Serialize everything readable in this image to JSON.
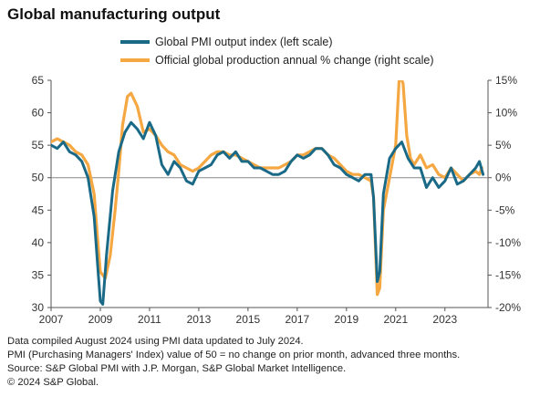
{
  "title": "Global manufacturing output",
  "notes": [
    "Data compiled August 2024 using PMI data updated to July 2024.",
    "PMI (Purchasing Managers' Index) value of 50 = no change on prior month, advanced three months.",
    "Source: S&P Global PMI with J.P. Morgan, S&P Global Market Intelligence.",
    "© 2024 S&P Global."
  ],
  "colors": {
    "pmi": "#1a6a87",
    "official": "#f5a742",
    "axis": "#555555",
    "zero_line": "#888888"
  },
  "chart_data": {
    "type": "line",
    "title": "Global manufacturing output",
    "x_ticks": [
      "2007",
      "2009",
      "2011",
      "2013",
      "2015",
      "2017",
      "2019",
      "2021",
      "2023"
    ],
    "left_axis": {
      "ylim": [
        30,
        65
      ],
      "ticks": [
        "30",
        "35",
        "40",
        "45",
        "50",
        "55",
        "60",
        "65"
      ]
    },
    "right_axis": {
      "ylim": [
        -20,
        15
      ],
      "ticks": [
        "-20%",
        "-15%",
        "-10%",
        "-5%",
        "0%",
        "5%",
        "10%",
        "15%"
      ]
    },
    "grid": false,
    "legend_position": "top",
    "series": [
      {
        "name": "Global PMI output index (left scale)",
        "axis": "left",
        "color": "#1a6a87",
        "points": [
          [
            2007.0,
            55.0
          ],
          [
            2007.25,
            54.5
          ],
          [
            2007.5,
            55.5
          ],
          [
            2007.75,
            54.0
          ],
          [
            2008.0,
            53.5
          ],
          [
            2008.25,
            52.5
          ],
          [
            2008.5,
            50.0
          ],
          [
            2008.75,
            44.0
          ],
          [
            2008.9,
            36.0
          ],
          [
            2009.0,
            31.0
          ],
          [
            2009.1,
            30.5
          ],
          [
            2009.25,
            38.0
          ],
          [
            2009.5,
            48.0
          ],
          [
            2009.75,
            54.0
          ],
          [
            2010.0,
            57.0
          ],
          [
            2010.25,
            58.5
          ],
          [
            2010.5,
            57.5
          ],
          [
            2010.75,
            56.0
          ],
          [
            2011.0,
            58.5
          ],
          [
            2011.25,
            56.5
          ],
          [
            2011.5,
            52.0
          ],
          [
            2011.75,
            50.5
          ],
          [
            2012.0,
            52.5
          ],
          [
            2012.25,
            51.5
          ],
          [
            2012.5,
            49.5
          ],
          [
            2012.75,
            49.0
          ],
          [
            2013.0,
            51.0
          ],
          [
            2013.25,
            51.5
          ],
          [
            2013.5,
            52.0
          ],
          [
            2013.75,
            53.5
          ],
          [
            2014.0,
            54.0
          ],
          [
            2014.25,
            53.0
          ],
          [
            2014.5,
            54.0
          ],
          [
            2014.75,
            52.5
          ],
          [
            2015.0,
            52.5
          ],
          [
            2015.25,
            51.5
          ],
          [
            2015.5,
            51.5
          ],
          [
            2015.75,
            51.0
          ],
          [
            2016.0,
            50.5
          ],
          [
            2016.25,
            50.5
          ],
          [
            2016.5,
            51.0
          ],
          [
            2016.75,
            52.5
          ],
          [
            2017.0,
            53.5
          ],
          [
            2017.25,
            53.0
          ],
          [
            2017.5,
            53.5
          ],
          [
            2017.75,
            54.5
          ],
          [
            2018.0,
            54.5
          ],
          [
            2018.25,
            53.5
          ],
          [
            2018.5,
            52.0
          ],
          [
            2018.75,
            51.5
          ],
          [
            2019.0,
            50.5
          ],
          [
            2019.25,
            50.0
          ],
          [
            2019.5,
            49.5
          ],
          [
            2019.75,
            50.5
          ],
          [
            2020.0,
            50.5
          ],
          [
            2020.1,
            47.0
          ],
          [
            2020.25,
            34.0
          ],
          [
            2020.35,
            35.5
          ],
          [
            2020.5,
            47.5
          ],
          [
            2020.75,
            53.0
          ],
          [
            2021.0,
            54.5
          ],
          [
            2021.25,
            55.5
          ],
          [
            2021.5,
            53.0
          ],
          [
            2021.75,
            51.5
          ],
          [
            2022.0,
            51.5
          ],
          [
            2022.25,
            48.5
          ],
          [
            2022.5,
            50.0
          ],
          [
            2022.75,
            48.5
          ],
          [
            2023.0,
            49.5
          ],
          [
            2023.25,
            51.5
          ],
          [
            2023.5,
            49.0
          ],
          [
            2023.75,
            49.5
          ],
          [
            2024.0,
            50.5
          ],
          [
            2024.25,
            51.5
          ],
          [
            2024.4,
            52.5
          ],
          [
            2024.55,
            50.5
          ]
        ]
      },
      {
        "name": "Official global production annual % change (right scale)",
        "axis": "right",
        "color": "#f5a742",
        "points": [
          [
            2007.0,
            5.5
          ],
          [
            2007.25,
            6.0
          ],
          [
            2007.5,
            5.5
          ],
          [
            2007.75,
            5.0
          ],
          [
            2008.0,
            4.0
          ],
          [
            2008.25,
            3.5
          ],
          [
            2008.5,
            2.0
          ],
          [
            2008.75,
            -2.5
          ],
          [
            2008.9,
            -10.0
          ],
          [
            2009.0,
            -14.5
          ],
          [
            2009.2,
            -15.5
          ],
          [
            2009.4,
            -12.0
          ],
          [
            2009.6,
            -5.0
          ],
          [
            2009.75,
            1.0
          ],
          [
            2009.9,
            8.0
          ],
          [
            2010.1,
            12.5
          ],
          [
            2010.25,
            13.0
          ],
          [
            2010.5,
            11.0
          ],
          [
            2010.75,
            7.0
          ],
          [
            2011.0,
            7.5
          ],
          [
            2011.25,
            6.5
          ],
          [
            2011.5,
            5.0
          ],
          [
            2011.75,
            4.0
          ],
          [
            2012.0,
            3.5
          ],
          [
            2012.25,
            2.0
          ],
          [
            2012.5,
            1.5
          ],
          [
            2012.75,
            1.0
          ],
          [
            2013.0,
            1.5
          ],
          [
            2013.25,
            2.5
          ],
          [
            2013.5,
            3.5
          ],
          [
            2013.75,
            4.0
          ],
          [
            2014.0,
            4.0
          ],
          [
            2014.25,
            3.5
          ],
          [
            2014.5,
            3.5
          ],
          [
            2014.75,
            3.0
          ],
          [
            2015.0,
            2.5
          ],
          [
            2015.25,
            2.0
          ],
          [
            2015.5,
            1.5
          ],
          [
            2015.75,
            1.5
          ],
          [
            2016.0,
            1.5
          ],
          [
            2016.25,
            1.5
          ],
          [
            2016.5,
            2.0
          ],
          [
            2016.75,
            2.5
          ],
          [
            2017.0,
            3.5
          ],
          [
            2017.25,
            3.5
          ],
          [
            2017.5,
            4.0
          ],
          [
            2017.75,
            4.5
          ],
          [
            2018.0,
            4.5
          ],
          [
            2018.25,
            3.5
          ],
          [
            2018.5,
            3.0
          ],
          [
            2018.75,
            2.0
          ],
          [
            2019.0,
            1.0
          ],
          [
            2019.25,
            0.5
          ],
          [
            2019.5,
            0.5
          ],
          [
            2019.75,
            0.0
          ],
          [
            2020.0,
            -0.5
          ],
          [
            2020.1,
            -3.0
          ],
          [
            2020.25,
            -18.0
          ],
          [
            2020.35,
            -17.0
          ],
          [
            2020.5,
            -5.0
          ],
          [
            2020.75,
            0.0
          ],
          [
            2021.0,
            5.0
          ],
          [
            2021.15,
            16.0
          ],
          [
            2021.3,
            14.5
          ],
          [
            2021.45,
            6.5
          ],
          [
            2021.6,
            3.0
          ],
          [
            2021.75,
            2.0
          ],
          [
            2022.0,
            3.5
          ],
          [
            2022.25,
            1.5
          ],
          [
            2022.5,
            2.0
          ],
          [
            2022.75,
            0.5
          ],
          [
            2023.0,
            0.0
          ],
          [
            2023.25,
            1.5
          ],
          [
            2023.5,
            0.5
          ],
          [
            2023.75,
            -0.5
          ],
          [
            2024.0,
            0.5
          ],
          [
            2024.25,
            1.0
          ],
          [
            2024.4,
            0.5
          ],
          [
            2024.5,
            1.5
          ]
        ]
      }
    ]
  }
}
